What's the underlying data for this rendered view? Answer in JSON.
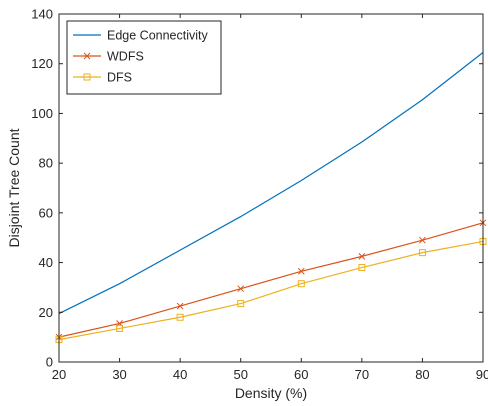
{
  "chart_data": {
    "type": "line",
    "xlabel": "Density (%)",
    "ylabel": "Disjoint Tree Count",
    "xlim": [
      20,
      90
    ],
    "ylim": [
      0,
      140
    ],
    "xticks": [
      "20",
      "30",
      "40",
      "50",
      "60",
      "70",
      "80",
      "90"
    ],
    "yticks": [
      "0",
      "20",
      "40",
      "60",
      "80",
      "100",
      "120",
      "140"
    ],
    "grid": false,
    "legend_position": "top-left",
    "x": [
      20,
      30,
      40,
      50,
      60,
      70,
      80,
      90
    ],
    "series": [
      {
        "name": "Edge Connectivity",
        "color": "#0072BD",
        "marker": "none",
        "values": [
          19.5,
          31.5,
          45,
          58.5,
          73,
          88.5,
          105.5,
          124.5
        ]
      },
      {
        "name": "WDFS",
        "color": "#D95319",
        "marker": "x",
        "values": [
          10,
          15.5,
          22.5,
          29.5,
          36.5,
          42.5,
          49,
          56
        ]
      },
      {
        "name": "DFS",
        "color": "#EDB120",
        "marker": "square",
        "values": [
          9,
          13.5,
          18,
          23.5,
          31.5,
          38,
          44,
          48.5
        ]
      }
    ]
  }
}
